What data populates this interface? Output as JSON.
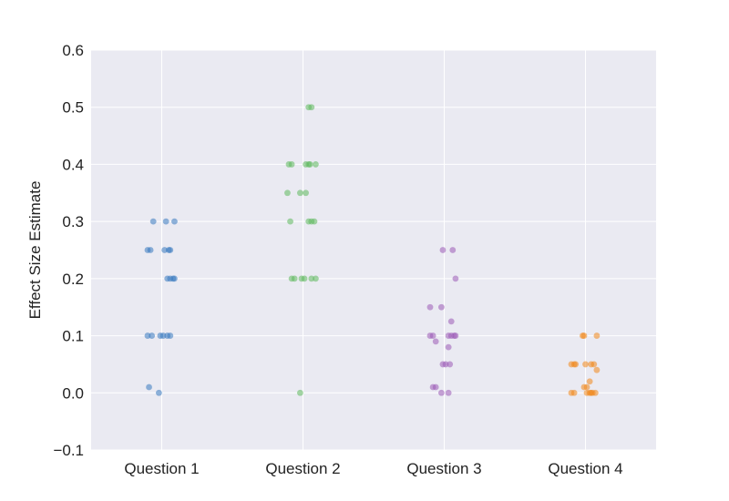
{
  "chart_data": {
    "type": "scatter",
    "title": "",
    "xlabel": "",
    "ylabel": "Effect Size Estimate",
    "ylim": [
      -0.1,
      0.6
    ],
    "yticks": [
      -0.1,
      0.0,
      0.1,
      0.2,
      0.3,
      0.4,
      0.5,
      0.6
    ],
    "ytick_labels": [
      "−0.1",
      "0.0",
      "0.1",
      "0.2",
      "0.3",
      "0.4",
      "0.5",
      "0.6"
    ],
    "categories": [
      "Question 1",
      "Question 2",
      "Question 3",
      "Question 4"
    ],
    "grid": true,
    "background_color": "#EAEAF2",
    "grid_color": "#FFFFFF",
    "series": [
      {
        "color": "#3778BF",
        "points": [
          {
            "x": "Question 1",
            "y": 0.3,
            "jitter": -0.06
          },
          {
            "x": "Question 1",
            "y": 0.3,
            "jitter": 0.03
          },
          {
            "x": "Question 1",
            "y": 0.3,
            "jitter": 0.09
          },
          {
            "x": "Question 1",
            "y": 0.25,
            "jitter": -0.1
          },
          {
            "x": "Question 1",
            "y": 0.25,
            "jitter": -0.08
          },
          {
            "x": "Question 1",
            "y": 0.25,
            "jitter": 0.02
          },
          {
            "x": "Question 1",
            "y": 0.25,
            "jitter": 0.05
          },
          {
            "x": "Question 1",
            "y": 0.25,
            "jitter": 0.06
          },
          {
            "x": "Question 1",
            "y": 0.2,
            "jitter": 0.04
          },
          {
            "x": "Question 1",
            "y": 0.2,
            "jitter": 0.06
          },
          {
            "x": "Question 1",
            "y": 0.2,
            "jitter": 0.08
          },
          {
            "x": "Question 1",
            "y": 0.2,
            "jitter": 0.09
          },
          {
            "x": "Question 1",
            "y": 0.1,
            "jitter": -0.1
          },
          {
            "x": "Question 1",
            "y": 0.1,
            "jitter": -0.07
          },
          {
            "x": "Question 1",
            "y": 0.1,
            "jitter": -0.01
          },
          {
            "x": "Question 1",
            "y": 0.1,
            "jitter": 0.01
          },
          {
            "x": "Question 1",
            "y": 0.1,
            "jitter": 0.04
          },
          {
            "x": "Question 1",
            "y": 0.1,
            "jitter": 0.06
          },
          {
            "x": "Question 1",
            "y": 0.01,
            "jitter": -0.09
          },
          {
            "x": "Question 1",
            "y": 0.0,
            "jitter": -0.02
          }
        ]
      },
      {
        "color": "#5CB85C",
        "points": [
          {
            "x": "Question 2",
            "y": 0.5,
            "jitter": 0.04
          },
          {
            "x": "Question 2",
            "y": 0.5,
            "jitter": 0.06
          },
          {
            "x": "Question 2",
            "y": 0.4,
            "jitter": -0.1
          },
          {
            "x": "Question 2",
            "y": 0.4,
            "jitter": -0.08
          },
          {
            "x": "Question 2",
            "y": 0.4,
            "jitter": 0.02
          },
          {
            "x": "Question 2",
            "y": 0.4,
            "jitter": 0.04
          },
          {
            "x": "Question 2",
            "y": 0.4,
            "jitter": 0.05
          },
          {
            "x": "Question 2",
            "y": 0.4,
            "jitter": 0.09
          },
          {
            "x": "Question 2",
            "y": 0.35,
            "jitter": -0.11
          },
          {
            "x": "Question 2",
            "y": 0.35,
            "jitter": -0.02
          },
          {
            "x": "Question 2",
            "y": 0.35,
            "jitter": 0.02
          },
          {
            "x": "Question 2",
            "y": 0.3,
            "jitter": -0.09
          },
          {
            "x": "Question 2",
            "y": 0.3,
            "jitter": 0.04
          },
          {
            "x": "Question 2",
            "y": 0.3,
            "jitter": 0.06
          },
          {
            "x": "Question 2",
            "y": 0.3,
            "jitter": 0.08
          },
          {
            "x": "Question 2",
            "y": 0.2,
            "jitter": -0.08
          },
          {
            "x": "Question 2",
            "y": 0.2,
            "jitter": -0.06
          },
          {
            "x": "Question 2",
            "y": 0.2,
            "jitter": -0.01
          },
          {
            "x": "Question 2",
            "y": 0.2,
            "jitter": 0.01
          },
          {
            "x": "Question 2",
            "y": 0.2,
            "jitter": 0.06
          },
          {
            "x": "Question 2",
            "y": 0.2,
            "jitter": 0.09
          },
          {
            "x": "Question 2",
            "y": 0.0,
            "jitter": -0.02
          }
        ]
      },
      {
        "color": "#9B59B6",
        "points": [
          {
            "x": "Question 3",
            "y": 0.25,
            "jitter": -0.01
          },
          {
            "x": "Question 3",
            "y": 0.25,
            "jitter": 0.06
          },
          {
            "x": "Question 3",
            "y": 0.2,
            "jitter": 0.08
          },
          {
            "x": "Question 3",
            "y": 0.15,
            "jitter": -0.1
          },
          {
            "x": "Question 3",
            "y": 0.15,
            "jitter": -0.02
          },
          {
            "x": "Question 3",
            "y": 0.125,
            "jitter": 0.05
          },
          {
            "x": "Question 3",
            "y": 0.1,
            "jitter": -0.1
          },
          {
            "x": "Question 3",
            "y": 0.1,
            "jitter": -0.08
          },
          {
            "x": "Question 3",
            "y": 0.1,
            "jitter": 0.03
          },
          {
            "x": "Question 3",
            "y": 0.1,
            "jitter": 0.05
          },
          {
            "x": "Question 3",
            "y": 0.1,
            "jitter": 0.07
          },
          {
            "x": "Question 3",
            "y": 0.1,
            "jitter": 0.08
          },
          {
            "x": "Question 3",
            "y": 0.09,
            "jitter": -0.06
          },
          {
            "x": "Question 3",
            "y": 0.08,
            "jitter": 0.03
          },
          {
            "x": "Question 3",
            "y": 0.05,
            "jitter": -0.01
          },
          {
            "x": "Question 3",
            "y": 0.05,
            "jitter": 0.01
          },
          {
            "x": "Question 3",
            "y": 0.05,
            "jitter": 0.04
          },
          {
            "x": "Question 3",
            "y": 0.01,
            "jitter": -0.08
          },
          {
            "x": "Question 3",
            "y": 0.01,
            "jitter": -0.06
          },
          {
            "x": "Question 3",
            "y": 0.0,
            "jitter": -0.02
          },
          {
            "x": "Question 3",
            "y": 0.0,
            "jitter": 0.03
          }
        ]
      },
      {
        "color": "#F0861A",
        "points": [
          {
            "x": "Question 4",
            "y": 0.1,
            "jitter": -0.02
          },
          {
            "x": "Question 4",
            "y": 0.1,
            "jitter": -0.01
          },
          {
            "x": "Question 4",
            "y": 0.1,
            "jitter": 0.08
          },
          {
            "x": "Question 4",
            "y": 0.05,
            "jitter": -0.1
          },
          {
            "x": "Question 4",
            "y": 0.05,
            "jitter": -0.08
          },
          {
            "x": "Question 4",
            "y": 0.05,
            "jitter": -0.07
          },
          {
            "x": "Question 4",
            "y": 0.05,
            "jitter": 0.0
          },
          {
            "x": "Question 4",
            "y": 0.05,
            "jitter": 0.04
          },
          {
            "x": "Question 4",
            "y": 0.05,
            "jitter": 0.06
          },
          {
            "x": "Question 4",
            "y": 0.04,
            "jitter": 0.08
          },
          {
            "x": "Question 4",
            "y": 0.02,
            "jitter": 0.03
          },
          {
            "x": "Question 4",
            "y": 0.01,
            "jitter": -0.01
          },
          {
            "x": "Question 4",
            "y": 0.01,
            "jitter": 0.01
          },
          {
            "x": "Question 4",
            "y": 0.0,
            "jitter": -0.1
          },
          {
            "x": "Question 4",
            "y": 0.0,
            "jitter": -0.08
          },
          {
            "x": "Question 4",
            "y": 0.0,
            "jitter": 0.01
          },
          {
            "x": "Question 4",
            "y": 0.0,
            "jitter": 0.03
          },
          {
            "x": "Question 4",
            "y": 0.0,
            "jitter": 0.04
          },
          {
            "x": "Question 4",
            "y": 0.0,
            "jitter": 0.05
          },
          {
            "x": "Question 4",
            "y": 0.0,
            "jitter": 0.07
          }
        ]
      }
    ]
  }
}
